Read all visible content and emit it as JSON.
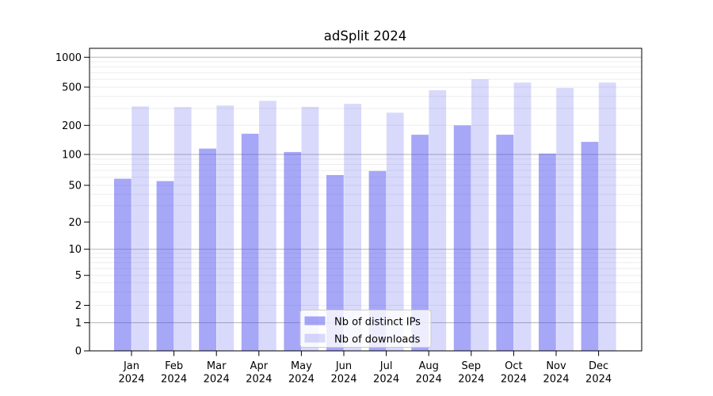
{
  "figure": {
    "background": "#ffffff",
    "plot_background": "#ffffff"
  },
  "chart_data": {
    "type": "bar",
    "title": "adSplit 2024",
    "categories": [
      "Jan",
      "Feb",
      "Mar",
      "Apr",
      "May",
      "Jun",
      "Jul",
      "Aug",
      "Sep",
      "Oct",
      "Nov",
      "Dec"
    ],
    "category_year": "2024",
    "series": [
      {
        "name": "Nb of distinct IPs",
        "color": "rgba(80,80,240,0.50)",
        "values": [
          58,
          55,
          115,
          164,
          106,
          63,
          69,
          160,
          200,
          160,
          102,
          135
        ]
      },
      {
        "name": "Nb of downloads",
        "color": "rgba(80,80,240,0.22)",
        "values": [
          315,
          310,
          322,
          360,
          312,
          335,
          271,
          464,
          600,
          556,
          490,
          556
        ]
      }
    ],
    "xlabel": "",
    "ylabel": "",
    "y_axis": {
      "scale": "symlog",
      "tick_values": [
        0,
        1,
        2,
        5,
        10,
        20,
        50,
        100,
        200,
        500,
        1000
      ],
      "tick_labels": [
        "0",
        "1",
        "2",
        "5",
        "10",
        "20",
        "50",
        "100",
        "200",
        "500",
        "1000"
      ],
      "ylim": [
        0,
        1400
      ]
    },
    "x_axis": {
      "tick_labels_line1": [
        "Jan",
        "Feb",
        "Mar",
        "Apr",
        "May",
        "Jun",
        "Jul",
        "Aug",
        "Sep",
        "Oct",
        "Nov",
        "Dec"
      ],
      "tick_labels_line2": [
        "2024",
        "2024",
        "2024",
        "2024",
        "2024",
        "2024",
        "2024",
        "2024",
        "2024",
        "2024",
        "2024",
        "2024"
      ]
    },
    "legend": {
      "position": "lower-center"
    },
    "grid": {
      "on": true,
      "major_color": "#b5b5b5",
      "minor_color": "#ededed"
    },
    "axis_color": "#000000"
  }
}
